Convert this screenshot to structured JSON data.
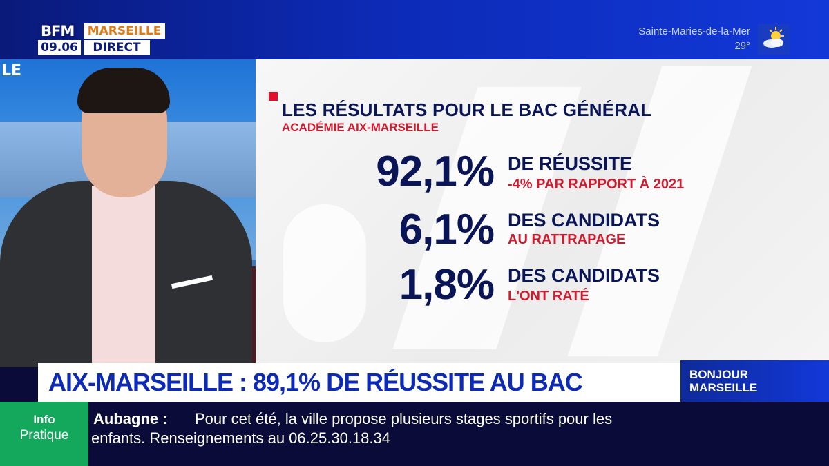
{
  "header": {
    "channel": "BFM",
    "city": "MARSEILLE",
    "time": "09.06",
    "live_label": "DIRECT",
    "weather": {
      "location": "Sainte-Maries-de-la-Mer",
      "temperature": "29°",
      "icon": "partly-sunny-icon"
    }
  },
  "studio": {
    "background_letters": "LE"
  },
  "graphic": {
    "title": "LES RÉSULTATS POUR LE BAC GÉNÉRAL",
    "subtitle": "ACADÉMIE AIX-MARSEILLE",
    "stats": [
      {
        "value": "92,1%",
        "label": "DE RÉUSSITE",
        "sub": "-4% PAR RAPPORT À 2021"
      },
      {
        "value": "6,1%",
        "label": "DES CANDIDATS",
        "sub": "AU RATTRAPAGE"
      },
      {
        "value": "1,8%",
        "label": "DES CANDIDATS",
        "sub": "L'ONT RATÉ"
      }
    ]
  },
  "headline": {
    "text": "AIX-MARSEILLE : 89,1% DE RÉUSSITE AU BAC"
  },
  "show": {
    "line1": "BONJOUR",
    "line2": "MARSEILLE"
  },
  "ticker": {
    "badge_line1": "Info",
    "badge_line2": "Pratique",
    "lead": "Aubagne :",
    "line1": "Pour cet été, la ville propose plusieurs stages sportifs pour les",
    "line2": "enfants. Renseignements au 06.25.30.18.34"
  },
  "colors": {
    "navy": "#0a1557",
    "accent_red": "#d21a2e",
    "bfm_blue": "#0c2ab5",
    "ticker_green": "#13a85c"
  }
}
